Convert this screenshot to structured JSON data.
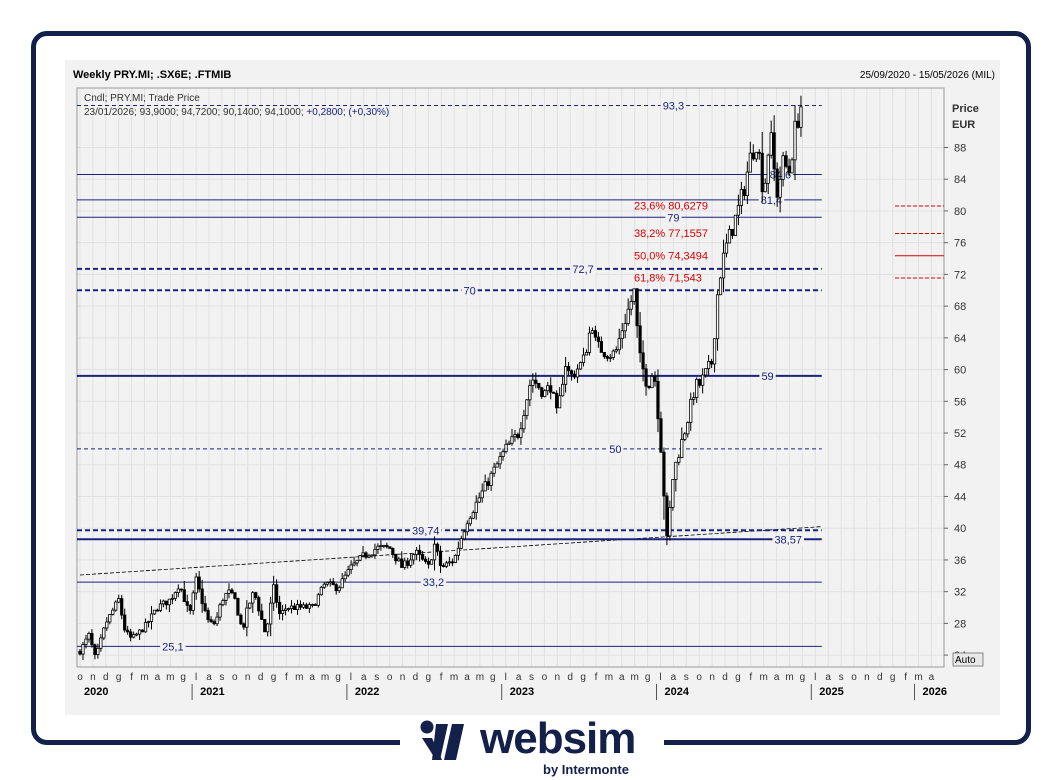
{
  "header": {
    "title": "Weekly PRY.MI; .SX6E; .FTMIB",
    "range": "25/09/2020 - 15/05/2026 (MIL)"
  },
  "legend": {
    "line1": "Cndl; PRY.MI; Trade Price",
    "line2_prefix": "23/01/2026; 93,9000; 94,7200; 90,1400; 94,1000; ",
    "line2_change": "+0,2800; (+0,30%)"
  },
  "axis": {
    "price_label": "Price",
    "currency_label": "EUR",
    "auto_button": "Auto",
    "y_ticks": [
      24,
      28,
      32,
      36,
      40,
      44,
      48,
      52,
      56,
      60,
      64,
      68,
      72,
      76,
      80,
      84,
      88
    ],
    "ylim": [
      22.5,
      95.5
    ]
  },
  "colors": {
    "level_line": "#1a237e",
    "fib_text": "#dd0000",
    "fib_line": "#dd0000",
    "candle": "#000000",
    "grid": "#e1e1e1",
    "panel": "#f2f2f2",
    "brand": "#12204a"
  },
  "months": {
    "letters": [
      "o",
      "n",
      "d",
      "g",
      "f",
      "m",
      "a",
      "m",
      "g",
      "l",
      "a",
      "s",
      "o",
      "n",
      "d",
      "g",
      "f",
      "m",
      "a",
      "m",
      "g",
      "l",
      "a",
      "s",
      "o",
      "n",
      "d",
      "g",
      "f",
      "m",
      "a",
      "m",
      "g",
      "l",
      "a",
      "s",
      "o",
      "n",
      "d",
      "g",
      "f",
      "m",
      "a",
      "m",
      "g",
      "l",
      "a",
      "s",
      "o",
      "n",
      "d",
      "g",
      "f",
      "m",
      "a",
      "m",
      "g",
      "l",
      "a",
      "s",
      "o",
      "n",
      "d",
      "g",
      "f",
      "m",
      "a",
      "m"
    ],
    "years": [
      {
        "label": "2020",
        "index": 0
      },
      {
        "label": "2021",
        "index": 9
      },
      {
        "label": "2022",
        "index": 21
      },
      {
        "label": "2023",
        "index": 33
      },
      {
        "label": "2024",
        "index": 45
      },
      {
        "label": "2025",
        "index": 57
      },
      {
        "label": "2026",
        "index": 65
      }
    ]
  },
  "chart_data": {
    "type": "candlestick",
    "title": "Weekly PRY.MI; .SX6E; .FTMIB",
    "ylabel": "Price EUR",
    "ylim": [
      22.5,
      95.5
    ],
    "close_path": [
      [
        0,
        24.5
      ],
      [
        0.7,
        26.5
      ],
      [
        1.2,
        23.5
      ],
      [
        2,
        28
      ],
      [
        3,
        31
      ],
      [
        3.5,
        27
      ],
      [
        4,
        26
      ],
      [
        5,
        27.5
      ],
      [
        6,
        30
      ],
      [
        7,
        31
      ],
      [
        7.7,
        33
      ],
      [
        8.5,
        29
      ],
      [
        9,
        33.5
      ],
      [
        9.6,
        30
      ],
      [
        10,
        28
      ],
      [
        10.5,
        28
      ],
      [
        11,
        31
      ],
      [
        11.5,
        32
      ],
      [
        12,
        31
      ],
      [
        12.6,
        27
      ],
      [
        13,
        30
      ],
      [
        13.5,
        32
      ],
      [
        14,
        29
      ],
      [
        14.4,
        26.5
      ],
      [
        15,
        32.5
      ],
      [
        15.5,
        29
      ],
      [
        16,
        30
      ],
      [
        17,
        30
      ],
      [
        18,
        30
      ],
      [
        19,
        33
      ],
      [
        20,
        32.5
      ],
      [
        21,
        35
      ],
      [
        22,
        36.5
      ],
      [
        23,
        37.5
      ],
      [
        24,
        37.5
      ],
      [
        25,
        35
      ],
      [
        26,
        37
      ],
      [
        27,
        35
      ],
      [
        27.5,
        38
      ],
      [
        28,
        35
      ],
      [
        29,
        36
      ],
      [
        30,
        41
      ],
      [
        31,
        44
      ],
      [
        32,
        47
      ],
      [
        33,
        50
      ],
      [
        34,
        52
      ],
      [
        35,
        59
      ],
      [
        36,
        57
      ],
      [
        36.5,
        58
      ],
      [
        37,
        54
      ],
      [
        37.6,
        61
      ],
      [
        38,
        59
      ],
      [
        39,
        61
      ],
      [
        39.7,
        66
      ],
      [
        40,
        63
      ],
      [
        41,
        62
      ],
      [
        41.5,
        62
      ],
      [
        42,
        65
      ],
      [
        43,
        70
      ],
      [
        43.3,
        62
      ],
      [
        44,
        58
      ],
      [
        44.5,
        60
      ],
      [
        45,
        51
      ],
      [
        45.5,
        38.5
      ],
      [
        46,
        47
      ],
      [
        47,
        53
      ],
      [
        47.7,
        58
      ],
      [
        48,
        58
      ],
      [
        49,
        61
      ],
      [
        49.5,
        71
      ],
      [
        50,
        75
      ],
      [
        51,
        80
      ],
      [
        51.5,
        83
      ],
      [
        52,
        87
      ],
      [
        52.5,
        89
      ],
      [
        53,
        82
      ],
      [
        53.5,
        90
      ],
      [
        54,
        82
      ],
      [
        54.5,
        86
      ],
      [
        55,
        85
      ],
      [
        55.4,
        90
      ],
      [
        56,
        94
      ]
    ],
    "levels": [
      {
        "label": "93,3",
        "value": 93.3,
        "style": "dashed",
        "x0": 0,
        "x1": 57.5,
        "label_x": 46
      },
      {
        "label": "84,6",
        "value": 84.6,
        "style": "solid",
        "x0": 0,
        "x1": 57.5,
        "label_x": 54.3
      },
      {
        "label": "81,4",
        "value": 81.4,
        "style": "solid",
        "x0": 0,
        "x1": 57.5,
        "label_x": 53.6
      },
      {
        "label": "79",
        "value": 79.2,
        "style": "solid",
        "x0": 0,
        "x1": 57.5,
        "label_x": 46
      },
      {
        "label": "72,7",
        "value": 72.7,
        "style": "dashed_bold",
        "x0": 0,
        "x1": 57.5,
        "label_x": 39
      },
      {
        "label": "70",
        "value": 70.0,
        "style": "dashed_bold",
        "x0": 0,
        "x1": 57.5,
        "label_x": 30.2
      },
      {
        "label": "59",
        "value": 59.2,
        "style": "solid_bold",
        "x0": 0,
        "x1": 57.5,
        "label_x": 53.3
      },
      {
        "label": "50",
        "value": 50.0,
        "style": "dashed",
        "x0": 0,
        "x1": 57.5,
        "label_x": 41.5
      },
      {
        "label": "39,74",
        "value": 39.74,
        "style": "dashed_bold",
        "x0": 0,
        "x1": 57.5,
        "label_x": 26.8
      },
      {
        "label": "38,57",
        "value": 38.6,
        "style": "solid_bold",
        "x0": 0,
        "x1": 57.5,
        "label_x": 54.9
      },
      {
        "label": "33,2",
        "value": 33.2,
        "style": "solid",
        "x0": 0,
        "x1": 57.5,
        "label_x": 27.4
      },
      {
        "label": "25,1",
        "value": 25.1,
        "style": "solid",
        "x0": 0,
        "x1": 57.5,
        "label_x": 7.2
      }
    ],
    "trendline": {
      "x0": 0,
      "y0": 34.1,
      "x1": 57.5,
      "y1": 40.2
    },
    "fibonacci": [
      {
        "label": "23,6% 80,6279",
        "value": 80.6279,
        "label_y": 80.7
      },
      {
        "label": "38,2% 77,1557",
        "value": 77.1557,
        "label_y": 77.2
      },
      {
        "label": "50,0% 74,3494",
        "value": 74.3494,
        "label_y": 74.4
      },
      {
        "label": "61,8% 71,543",
        "value": 71.543,
        "label_y": 71.6
      }
    ]
  }
}
